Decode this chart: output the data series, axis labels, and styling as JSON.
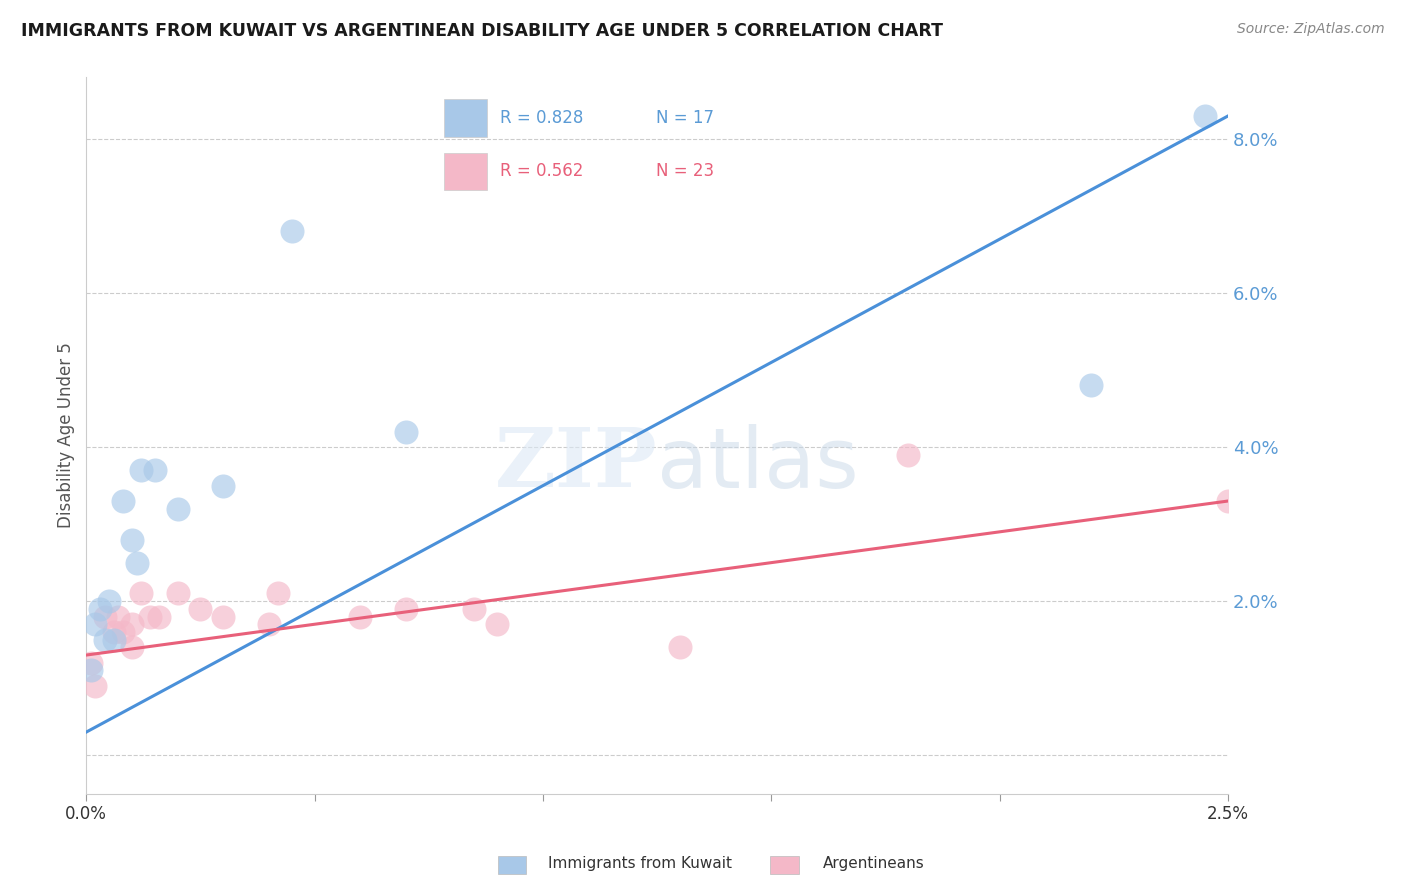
{
  "title": "IMMIGRANTS FROM KUWAIT VS ARGENTINEAN DISABILITY AGE UNDER 5 CORRELATION CHART",
  "source": "Source: ZipAtlas.com",
  "ylabel": "Disability Age Under 5",
  "legend_blue_R": "R = 0.828",
  "legend_blue_N": "N = 17",
  "legend_pink_R": "R = 0.562",
  "legend_pink_N": "N = 23",
  "legend_blue_label": "Immigrants from Kuwait",
  "legend_pink_label": "Argentineans",
  "blue_color": "#a8c8e8",
  "pink_color": "#f4b8c8",
  "blue_line_color": "#4a90d9",
  "pink_line_color": "#e8607a",
  "right_ytick_color": "#5b9bd5",
  "legend_R_color_blue": "#5b9bd5",
  "legend_N_color_blue": "#5b9bd5",
  "legend_R_color_pink": "#e8607a",
  "legend_N_color_pink": "#e8607a",
  "xlim": [
    0.0,
    0.025
  ],
  "ylim": [
    -0.005,
    0.088
  ],
  "blue_points_x": [
    0.0001,
    0.0002,
    0.0003,
    0.0004,
    0.0005,
    0.0006,
    0.0008,
    0.001,
    0.0011,
    0.0012,
    0.0015,
    0.002,
    0.003,
    0.0045,
    0.007,
    0.022,
    0.0245
  ],
  "blue_points_y": [
    0.011,
    0.017,
    0.019,
    0.015,
    0.02,
    0.015,
    0.033,
    0.028,
    0.025,
    0.037,
    0.037,
    0.032,
    0.035,
    0.068,
    0.042,
    0.048,
    0.083
  ],
  "pink_points_x": [
    0.0001,
    0.0002,
    0.0004,
    0.0006,
    0.0007,
    0.0008,
    0.001,
    0.001,
    0.0012,
    0.0014,
    0.0016,
    0.002,
    0.0025,
    0.003,
    0.004,
    0.0042,
    0.006,
    0.007,
    0.0085,
    0.009,
    0.013,
    0.018,
    0.025
  ],
  "pink_points_y": [
    0.012,
    0.009,
    0.018,
    0.016,
    0.018,
    0.016,
    0.017,
    0.014,
    0.021,
    0.018,
    0.018,
    0.021,
    0.019,
    0.018,
    0.017,
    0.021,
    0.018,
    0.019,
    0.019,
    0.017,
    0.014,
    0.039,
    0.033
  ],
  "blue_line_x": [
    0.0,
    0.025
  ],
  "blue_line_y": [
    0.003,
    0.083
  ],
  "pink_line_x": [
    0.0,
    0.025
  ],
  "pink_line_y": [
    0.013,
    0.033
  ],
  "grid_color": "#cccccc",
  "background_color": "#ffffff",
  "yticks_right": [
    0.02,
    0.04,
    0.06,
    0.08
  ],
  "ytick_labels_right": [
    "2.0%",
    "4.0%",
    "6.0%",
    "8.0%"
  ],
  "xticks": [
    0.0,
    0.005,
    0.01,
    0.015,
    0.02,
    0.025
  ],
  "xtick_labels": [
    "0.0%",
    "",
    "",
    "",
    "",
    "2.5%"
  ]
}
